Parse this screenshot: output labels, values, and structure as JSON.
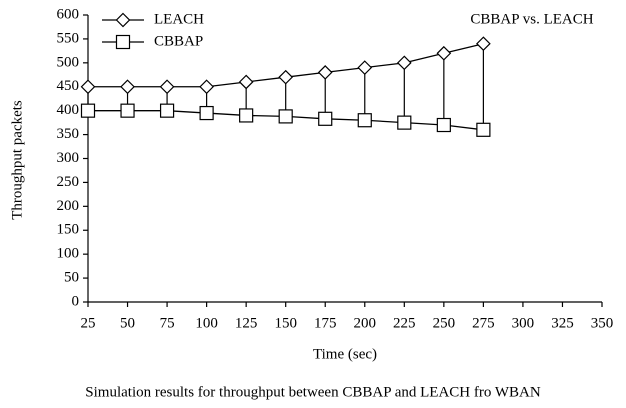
{
  "chart_data": {
    "type": "line",
    "annotation": "CBBAP vs. LEACH",
    "xlabel": "Time (sec)",
    "ylabel": "Throughput packets",
    "caption": "Simulation results for throughput between CBBAP and LEACH fro WBAN",
    "x": [
      25,
      50,
      75,
      100,
      125,
      150,
      175,
      200,
      225,
      250,
      275
    ],
    "series": [
      {
        "name": "LEACH",
        "color": "#000000",
        "marker": "diamond",
        "values": [
          450,
          450,
          450,
          450,
          460,
          470,
          480,
          490,
          500,
          520,
          540
        ]
      },
      {
        "name": "CBBAP",
        "color": "#000000",
        "marker": "square",
        "values": [
          400,
          400,
          400,
          395,
          390,
          388,
          383,
          380,
          375,
          370,
          360
        ]
      }
    ],
    "drop_lines": true,
    "xlim": [
      25,
      350
    ],
    "xticks": [
      25,
      50,
      75,
      100,
      125,
      150,
      175,
      200,
      225,
      250,
      275,
      300,
      325,
      350
    ],
    "ylim": [
      0,
      600
    ],
    "yticks": [
      0,
      50,
      100,
      150,
      200,
      250,
      300,
      350,
      400,
      450,
      500,
      550,
      600
    ],
    "legend": "upper left"
  }
}
